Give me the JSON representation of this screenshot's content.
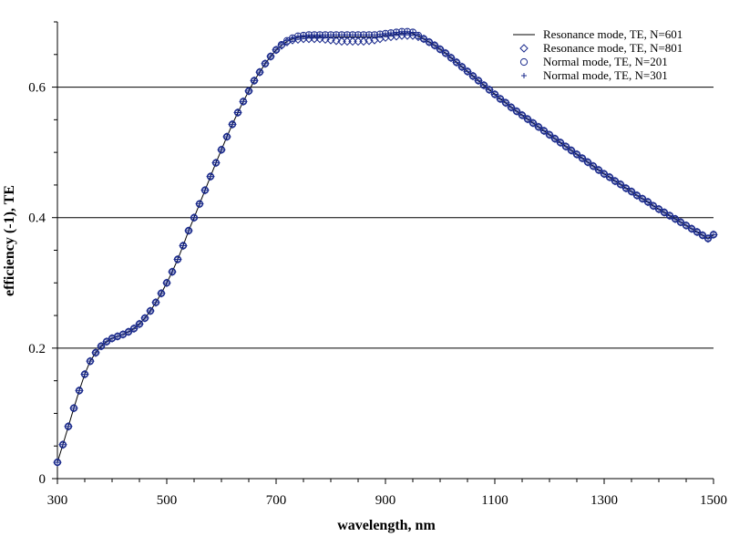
{
  "chart_data": {
    "type": "line",
    "title": "",
    "xlabel": "wavelength, nm",
    "ylabel": "efficiency (-1), TE",
    "xlim": [
      300,
      1500
    ],
    "ylim": [
      0,
      0.7
    ],
    "x_ticks": [
      300,
      500,
      700,
      900,
      1100,
      1300,
      1500
    ],
    "y_ticks": [
      0,
      0.2,
      0.4,
      0.6
    ],
    "y_tick_labels": [
      "0",
      "0.2",
      "0.4",
      "0.6"
    ],
    "grid": "horizontal major lines",
    "legend_position": "top-right",
    "colors": {
      "line": "#000000",
      "marker": "#1a2a8c"
    },
    "legend": [
      {
        "label": "Resonance mode, TE, N=601",
        "marker": "line"
      },
      {
        "label": "Resonance mode, TE, N=801",
        "marker": "diamond"
      },
      {
        "label": "Normal mode, TE, N=201",
        "marker": "circle"
      },
      {
        "label": "Normal mode, TE, N=301",
        "marker": "plus"
      }
    ],
    "x": [
      300,
      310,
      320,
      330,
      340,
      350,
      360,
      370,
      380,
      390,
      400,
      410,
      420,
      430,
      440,
      450,
      460,
      470,
      480,
      490,
      500,
      510,
      520,
      530,
      540,
      550,
      560,
      570,
      580,
      590,
      600,
      610,
      620,
      630,
      640,
      650,
      660,
      670,
      680,
      690,
      700,
      710,
      720,
      730,
      740,
      750,
      760,
      770,
      780,
      790,
      800,
      810,
      820,
      830,
      840,
      850,
      860,
      870,
      880,
      890,
      900,
      910,
      920,
      930,
      940,
      950,
      960,
      970,
      980,
      990,
      1000,
      1010,
      1020,
      1030,
      1040,
      1050,
      1060,
      1070,
      1080,
      1090,
      1100,
      1110,
      1120,
      1130,
      1140,
      1150,
      1160,
      1170,
      1180,
      1190,
      1200,
      1210,
      1220,
      1230,
      1240,
      1250,
      1260,
      1270,
      1280,
      1290,
      1300,
      1310,
      1320,
      1330,
      1340,
      1350,
      1360,
      1370,
      1380,
      1390,
      1400,
      1410,
      1420,
      1430,
      1440,
      1450,
      1460,
      1470,
      1480,
      1490,
      1500
    ],
    "series": [
      {
        "name": "Resonance mode, TE, N=601",
        "style": "line",
        "values": [
          0.025,
          0.052,
          0.08,
          0.108,
          0.135,
          0.16,
          0.18,
          0.193,
          0.203,
          0.21,
          0.215,
          0.218,
          0.221,
          0.225,
          0.23,
          0.237,
          0.246,
          0.257,
          0.27,
          0.284,
          0.3,
          0.317,
          0.336,
          0.357,
          0.38,
          0.4,
          0.421,
          0.442,
          0.463,
          0.484,
          0.504,
          0.524,
          0.543,
          0.561,
          0.578,
          0.594,
          0.61,
          0.623,
          0.636,
          0.647,
          0.657,
          0.664,
          0.67,
          0.674,
          0.676,
          0.677,
          0.677,
          0.677,
          0.677,
          0.677,
          0.677,
          0.677,
          0.677,
          0.677,
          0.677,
          0.677,
          0.677,
          0.677,
          0.677,
          0.678,
          0.679,
          0.68,
          0.681,
          0.682,
          0.683,
          0.682,
          0.678,
          0.674,
          0.669,
          0.664,
          0.658,
          0.652,
          0.645,
          0.638,
          0.631,
          0.624,
          0.617,
          0.61,
          0.603,
          0.596,
          0.589,
          0.582,
          0.576,
          0.569,
          0.563,
          0.557,
          0.551,
          0.545,
          0.539,
          0.533,
          0.527,
          0.521,
          0.515,
          0.509,
          0.503,
          0.497,
          0.491,
          0.485,
          0.479,
          0.473,
          0.467,
          0.462,
          0.456,
          0.451,
          0.445,
          0.44,
          0.434,
          0.429,
          0.424,
          0.418,
          0.413,
          0.408,
          0.403,
          0.398,
          0.393,
          0.388,
          0.383,
          0.378,
          0.373,
          0.368,
          0.374
        ]
      },
      {
        "name": "Resonance mode, TE, N=801",
        "style": "diamond",
        "values": [
          0.025,
          0.052,
          0.08,
          0.108,
          0.135,
          0.16,
          0.18,
          0.193,
          0.203,
          0.21,
          0.215,
          0.218,
          0.221,
          0.225,
          0.23,
          0.237,
          0.246,
          0.257,
          0.27,
          0.284,
          0.3,
          0.317,
          0.336,
          0.357,
          0.38,
          0.4,
          0.421,
          0.442,
          0.463,
          0.484,
          0.504,
          0.524,
          0.543,
          0.561,
          0.578,
          0.594,
          0.61,
          0.623,
          0.636,
          0.647,
          0.657,
          0.664,
          0.669,
          0.672,
          0.673,
          0.674,
          0.674,
          0.674,
          0.674,
          0.673,
          0.672,
          0.671,
          0.67,
          0.67,
          0.67,
          0.67,
          0.67,
          0.671,
          0.672,
          0.674,
          0.676,
          0.677,
          0.678,
          0.679,
          0.679,
          0.679,
          0.677,
          0.674,
          0.669,
          0.664,
          0.658,
          0.652,
          0.645,
          0.638,
          0.631,
          0.624,
          0.617,
          0.61,
          0.603,
          0.596,
          0.589,
          0.582,
          0.576,
          0.569,
          0.563,
          0.557,
          0.551,
          0.545,
          0.539,
          0.533,
          0.527,
          0.521,
          0.515,
          0.509,
          0.503,
          0.497,
          0.491,
          0.485,
          0.479,
          0.473,
          0.467,
          0.462,
          0.456,
          0.451,
          0.445,
          0.44,
          0.434,
          0.429,
          0.424,
          0.418,
          0.413,
          0.408,
          0.403,
          0.398,
          0.393,
          0.388,
          0.383,
          0.378,
          0.373,
          0.368,
          0.374
        ]
      },
      {
        "name": "Normal mode, TE, N=201",
        "style": "circle",
        "values": [
          0.025,
          0.052,
          0.08,
          0.108,
          0.135,
          0.16,
          0.18,
          0.193,
          0.203,
          0.21,
          0.215,
          0.218,
          0.221,
          0.225,
          0.23,
          0.237,
          0.246,
          0.257,
          0.27,
          0.284,
          0.3,
          0.317,
          0.336,
          0.357,
          0.38,
          0.4,
          0.421,
          0.442,
          0.463,
          0.484,
          0.504,
          0.524,
          0.543,
          0.561,
          0.578,
          0.594,
          0.61,
          0.623,
          0.636,
          0.647,
          0.657,
          0.665,
          0.671,
          0.675,
          0.678,
          0.679,
          0.68,
          0.68,
          0.68,
          0.68,
          0.68,
          0.68,
          0.68,
          0.68,
          0.68,
          0.68,
          0.68,
          0.68,
          0.68,
          0.681,
          0.682,
          0.683,
          0.684,
          0.685,
          0.685,
          0.684,
          0.679,
          0.674,
          0.669,
          0.664,
          0.658,
          0.652,
          0.645,
          0.638,
          0.631,
          0.624,
          0.617,
          0.61,
          0.603,
          0.596,
          0.589,
          0.582,
          0.576,
          0.569,
          0.563,
          0.557,
          0.551,
          0.545,
          0.539,
          0.533,
          0.527,
          0.521,
          0.515,
          0.509,
          0.503,
          0.497,
          0.491,
          0.485,
          0.479,
          0.473,
          0.467,
          0.462,
          0.456,
          0.451,
          0.445,
          0.44,
          0.434,
          0.429,
          0.424,
          0.418,
          0.413,
          0.408,
          0.403,
          0.398,
          0.393,
          0.388,
          0.383,
          0.378,
          0.373,
          0.368,
          0.374
        ]
      },
      {
        "name": "Normal mode, TE, N=301",
        "style": "plus",
        "values": [
          0.025,
          0.052,
          0.08,
          0.108,
          0.135,
          0.16,
          0.18,
          0.193,
          0.203,
          0.21,
          0.215,
          0.218,
          0.221,
          0.225,
          0.23,
          0.237,
          0.246,
          0.257,
          0.27,
          0.284,
          0.3,
          0.317,
          0.336,
          0.357,
          0.38,
          0.4,
          0.421,
          0.442,
          0.463,
          0.484,
          0.504,
          0.524,
          0.543,
          0.561,
          0.578,
          0.594,
          0.61,
          0.623,
          0.636,
          0.647,
          0.657,
          0.665,
          0.671,
          0.675,
          0.678,
          0.679,
          0.68,
          0.68,
          0.68,
          0.68,
          0.68,
          0.68,
          0.68,
          0.68,
          0.68,
          0.68,
          0.68,
          0.68,
          0.68,
          0.681,
          0.682,
          0.683,
          0.684,
          0.685,
          0.685,
          0.684,
          0.679,
          0.674,
          0.669,
          0.664,
          0.658,
          0.652,
          0.645,
          0.638,
          0.631,
          0.624,
          0.617,
          0.61,
          0.603,
          0.596,
          0.589,
          0.582,
          0.576,
          0.569,
          0.563,
          0.557,
          0.551,
          0.545,
          0.539,
          0.533,
          0.527,
          0.521,
          0.515,
          0.509,
          0.503,
          0.497,
          0.491,
          0.485,
          0.479,
          0.473,
          0.467,
          0.462,
          0.456,
          0.451,
          0.445,
          0.44,
          0.434,
          0.429,
          0.424,
          0.418,
          0.413,
          0.408,
          0.403,
          0.398,
          0.393,
          0.388,
          0.383,
          0.378,
          0.373,
          0.368,
          0.374
        ]
      }
    ]
  }
}
